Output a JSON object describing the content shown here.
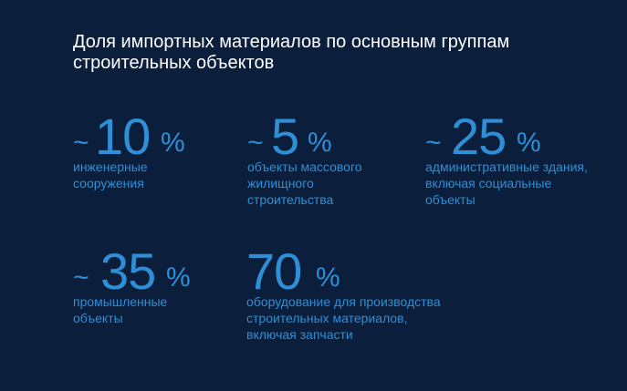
{
  "title": "Доля импортных материалов по основным группам строительных объектов",
  "stats": [
    {
      "prefix": "~",
      "value": "10",
      "unit": "%",
      "description": "инженерные сооружения"
    },
    {
      "prefix": "~",
      "value": "5",
      "unit": "%",
      "description": "объекты массового жилищного строительства"
    },
    {
      "prefix": "~",
      "value": "25",
      "unit": "%",
      "description": "административные здания, включая социальные объекты"
    },
    {
      "prefix": "~",
      "value": "35",
      "unit": "%",
      "description": "промышленные объекты"
    },
    {
      "prefix": "",
      "value": "70",
      "unit": "%",
      "description": "оборудование для производства строительных материалов, включая запчасти"
    }
  ],
  "colors": {
    "background": "#0b1f3d",
    "accent": "#2e8fd6",
    "title": "#ffffff"
  }
}
